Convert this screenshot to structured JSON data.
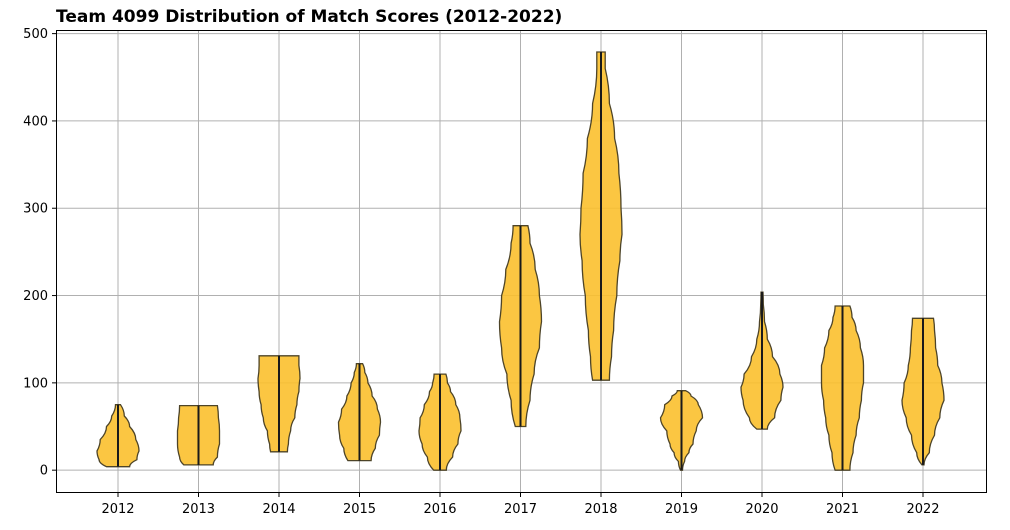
{
  "chart_data": {
    "type": "violin",
    "title": "Team 4099 Distribution of Match Scores (2012-2022)",
    "xlabel": "",
    "ylabel": "",
    "ylim": [
      -25,
      503
    ],
    "yticks": [
      0,
      100,
      200,
      300,
      400,
      500
    ],
    "grid": true,
    "fill_color": "#fbc02d",
    "edge_color": "#4d4428",
    "categories": [
      "2012",
      "2013",
      "2014",
      "2015",
      "2016",
      "2017",
      "2018",
      "2019",
      "2020",
      "2021",
      "2022"
    ],
    "series": [
      {
        "category": "2012",
        "min": 4,
        "max": 75,
        "profile": [
          [
            4,
            0.55
          ],
          [
            12,
            0.9
          ],
          [
            22,
            1.0
          ],
          [
            35,
            0.85
          ],
          [
            50,
            0.55
          ],
          [
            62,
            0.3
          ],
          [
            75,
            0.12
          ]
        ]
      },
      {
        "category": "2013",
        "min": 6,
        "max": 74,
        "profile": [
          [
            6,
            0.7
          ],
          [
            15,
            0.9
          ],
          [
            30,
            1.0
          ],
          [
            45,
            1.0
          ],
          [
            60,
            0.95
          ],
          [
            74,
            0.9
          ]
        ]
      },
      {
        "category": "2014",
        "min": 21,
        "max": 131,
        "profile": [
          [
            21,
            0.4
          ],
          [
            30,
            0.45
          ],
          [
            45,
            0.55
          ],
          [
            60,
            0.75
          ],
          [
            75,
            0.85
          ],
          [
            90,
            0.95
          ],
          [
            105,
            1.0
          ],
          [
            120,
            0.95
          ],
          [
            131,
            0.95
          ]
        ]
      },
      {
        "category": "2015",
        "min": 11,
        "max": 122,
        "profile": [
          [
            11,
            0.55
          ],
          [
            25,
            0.75
          ],
          [
            40,
            0.95
          ],
          [
            55,
            1.0
          ],
          [
            70,
            0.85
          ],
          [
            85,
            0.6
          ],
          [
            100,
            0.4
          ],
          [
            112,
            0.25
          ],
          [
            122,
            0.15
          ]
        ]
      },
      {
        "category": "2016",
        "min": 0,
        "max": 110,
        "profile": [
          [
            0,
            0.3
          ],
          [
            15,
            0.6
          ],
          [
            30,
            0.85
          ],
          [
            45,
            1.0
          ],
          [
            60,
            0.95
          ],
          [
            75,
            0.75
          ],
          [
            90,
            0.5
          ],
          [
            100,
            0.35
          ],
          [
            110,
            0.28
          ]
        ]
      },
      {
        "category": "2017",
        "min": 50,
        "max": 280,
        "profile": [
          [
            50,
            0.25
          ],
          [
            80,
            0.45
          ],
          [
            110,
            0.65
          ],
          [
            140,
            0.9
          ],
          [
            170,
            1.0
          ],
          [
            200,
            0.9
          ],
          [
            230,
            0.7
          ],
          [
            260,
            0.45
          ],
          [
            280,
            0.35
          ]
        ]
      },
      {
        "category": "2018",
        "min": 103,
        "max": 479,
        "profile": [
          [
            103,
            0.4
          ],
          [
            130,
            0.5
          ],
          [
            160,
            0.6
          ],
          [
            200,
            0.75
          ],
          [
            240,
            0.9
          ],
          [
            270,
            1.0
          ],
          [
            300,
            0.95
          ],
          [
            340,
            0.85
          ],
          [
            380,
            0.65
          ],
          [
            420,
            0.4
          ],
          [
            460,
            0.2
          ],
          [
            479,
            0.2
          ]
        ]
      },
      {
        "category": "2019",
        "min": 0,
        "max": 91,
        "profile": [
          [
            0,
            0.05
          ],
          [
            10,
            0.15
          ],
          [
            20,
            0.35
          ],
          [
            30,
            0.55
          ],
          [
            45,
            0.7
          ],
          [
            60,
            1.0
          ],
          [
            75,
            0.8
          ],
          [
            85,
            0.45
          ],
          [
            91,
            0.2
          ]
        ]
      },
      {
        "category": "2020",
        "min": 47,
        "max": 204,
        "profile": [
          [
            47,
            0.25
          ],
          [
            60,
            0.6
          ],
          [
            80,
            0.9
          ],
          [
            95,
            1.0
          ],
          [
            110,
            0.85
          ],
          [
            130,
            0.5
          ],
          [
            150,
            0.25
          ],
          [
            170,
            0.12
          ],
          [
            190,
            0.06
          ],
          [
            204,
            0.05
          ]
        ]
      },
      {
        "category": "2021",
        "min": 0,
        "max": 188,
        "profile": [
          [
            0,
            0.35
          ],
          [
            20,
            0.5
          ],
          [
            40,
            0.65
          ],
          [
            60,
            0.8
          ],
          [
            80,
            0.9
          ],
          [
            100,
            1.0
          ],
          [
            120,
            1.0
          ],
          [
            140,
            0.85
          ],
          [
            160,
            0.65
          ],
          [
            175,
            0.45
          ],
          [
            188,
            0.35
          ]
        ]
      },
      {
        "category": "2022",
        "min": 6,
        "max": 174,
        "profile": [
          [
            6,
            0.05
          ],
          [
            20,
            0.3
          ],
          [
            40,
            0.55
          ],
          [
            60,
            0.8
          ],
          [
            80,
            1.0
          ],
          [
            100,
            0.9
          ],
          [
            120,
            0.7
          ],
          [
            140,
            0.6
          ],
          [
            160,
            0.55
          ],
          [
            174,
            0.5
          ]
        ]
      }
    ]
  }
}
